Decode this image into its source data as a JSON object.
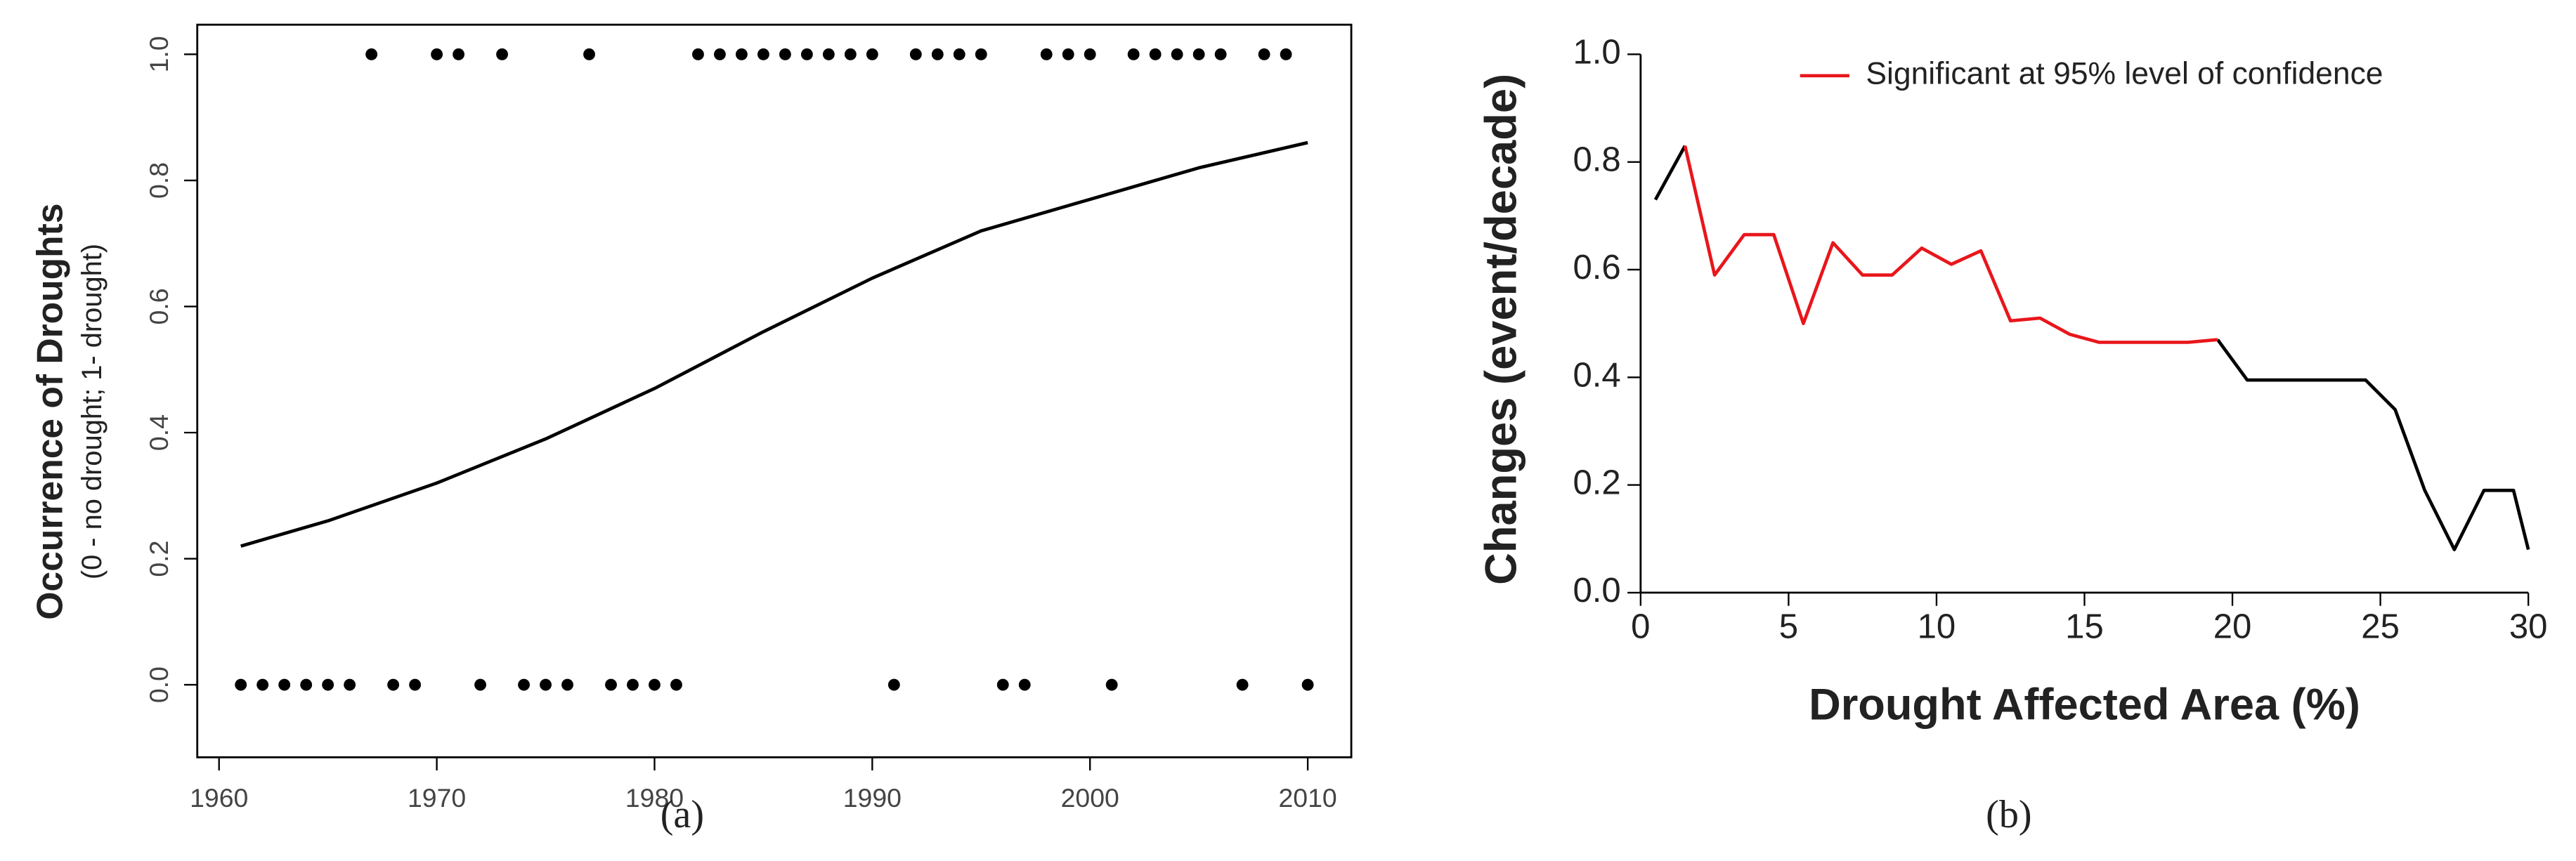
{
  "chart_data": [
    {
      "type": "scatter",
      "y_label": "Occurrence of Droughts",
      "y_sublabel": "(0 - no drought; 1- drought)",
      "caption": "(a)",
      "xlim": [
        1959,
        2012
      ],
      "ylim": [
        -0.115,
        1.047
      ],
      "xticks": [
        1960,
        1970,
        1980,
        1990,
        2000,
        2010
      ],
      "yticks": [
        {
          "value": 0,
          "label": "0.0"
        },
        0.2,
        0.4,
        0.6,
        0.8,
        {
          "value": 1,
          "label": "1.0"
        }
      ],
      "series": [
        {
          "type": "scatter",
          "color": "#000000",
          "x": [
            1961,
            1962,
            1963,
            1964,
            1965,
            1966,
            1967,
            1968,
            1969,
            1970,
            1971,
            1972,
            1973,
            1974,
            1975,
            1976,
            1977,
            1978,
            1979,
            1980,
            1981,
            1982,
            1983,
            1984,
            1985,
            1986,
            1987,
            1988,
            1989,
            1990,
            1991,
            1992,
            1993,
            1994,
            1995,
            1996,
            1997,
            1998,
            1999,
            2000,
            2001,
            2002,
            2003,
            2004,
            2005,
            2006,
            2007,
            2008,
            2009,
            2010
          ],
          "values": [
            0,
            0,
            0,
            0,
            0,
            0,
            1,
            0,
            0,
            1,
            1,
            0,
            1,
            0,
            0,
            0,
            1,
            0,
            0,
            0,
            0,
            1,
            1,
            1,
            1,
            1,
            1,
            1,
            1,
            1,
            0,
            1,
            1,
            1,
            1,
            0,
            0,
            1,
            1,
            1,
            0,
            1,
            1,
            1,
            1,
            1,
            0,
            1,
            1,
            0
          ]
        },
        {
          "type": "line",
          "color": "#000000",
          "x": [
            1961,
            1965,
            1970,
            1975,
            1980,
            1985,
            1990,
            1995,
            2000,
            2005,
            2010
          ],
          "values": [
            0.22,
            0.26,
            0.32,
            0.39,
            0.47,
            0.56,
            0.645,
            0.72,
            0.77,
            0.82,
            0.86
          ]
        }
      ]
    },
    {
      "type": "line",
      "x_label": "Drought Affected Area (%)",
      "y_label": "Changes (event/decade)",
      "caption": "(b)",
      "legend": "upper right",
      "xlim": [
        0,
        30
      ],
      "ylim": [
        0,
        1
      ],
      "xticks": [
        0,
        5,
        10,
        15,
        20,
        25,
        30
      ],
      "yticks": [
        {
          "value": 0,
          "label": "0.0"
        },
        0.2,
        0.4,
        0.6,
        0.8,
        {
          "value": 1,
          "label": "1.0"
        }
      ],
      "x": [
        0.5,
        1.5,
        2.5,
        3.5,
        4.5,
        5.5,
        6.5,
        7.5,
        8.5,
        9.5,
        10.5,
        11.5,
        12.5,
        13.5,
        14.5,
        15.5,
        16.5,
        17.5,
        18.5,
        19.5,
        20.5,
        21.5,
        22.5,
        23.5,
        24.5,
        25.5,
        26.5,
        27.5,
        28.5,
        29.5,
        30
      ],
      "series": [
        {
          "color": "#000000",
          "values": [
            0.73,
            0.83,
            null,
            null,
            null,
            null,
            null,
            null,
            null,
            null,
            null,
            null,
            null,
            null,
            null,
            null,
            null,
            null,
            null,
            0.47,
            0.395,
            0.395,
            0.395,
            0.395,
            0.395,
            0.34,
            0.19,
            0.08,
            0.19,
            0.19,
            0.08
          ]
        },
        {
          "name": "Significant at 95% level of confidence",
          "color": "#e8161b",
          "values": [
            null,
            0.83,
            0.59,
            0.665,
            0.665,
            0.5,
            0.65,
            0.59,
            0.59,
            0.64,
            0.61,
            0.635,
            0.505,
            0.51,
            0.48,
            0.465,
            0.465,
            0.465,
            0.465,
            0.47,
            null,
            null,
            null,
            null,
            null,
            null,
            null,
            null,
            null,
            null,
            null
          ]
        }
      ]
    }
  ]
}
